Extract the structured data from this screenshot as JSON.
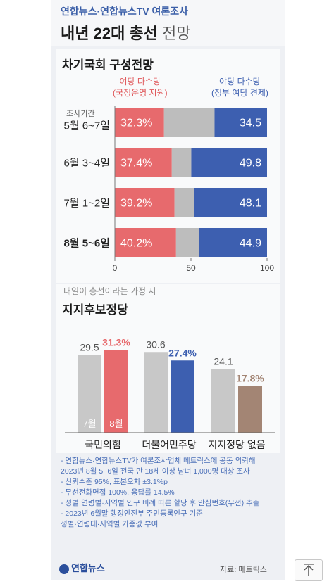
{
  "header": {
    "publisher": "연합뉴스·연합뉴스TV 여론조사",
    "title_main": "내년 22대 총선",
    "title_sub": "전망"
  },
  "section1": {
    "title": "차기국회 구성전망",
    "legend_left_line1": "여당 다수당",
    "legend_left_line2": "(국정운영 지원)",
    "legend_right_line1": "야당 다수당",
    "legend_right_line2": "(정부 여당 견제)",
    "period_header": "조사기간"
  },
  "section2": {
    "note": "내일이 총선이라는 가정 시",
    "title": "지지후보정당"
  },
  "notes": [
    "- 연합뉴스·연합뉴스TV가 여론조사업체 메트릭스에 공동 의뢰해",
    "  2023년 8월 5~6일 전국 만 18세 이상 남녀 1,000명 대상 조사",
    "- 신뢰수준 95%, 표본오차 ±3.1%p",
    "- 무선전화면접 100%, 응답률 14.5%",
    "- 성별·연령별·지역별 인구 비례 따른 할당 후 안심번호(무선) 추출",
    "- 2023년 6월말 행정안전부 주민등록인구 기준",
    "  성별·연령대·지역별 가중값 부여"
  ],
  "footer": {
    "logo": "연합뉴스",
    "source": "자료: 메트릭스"
  },
  "colors": {
    "red": "#e76a6d",
    "blue": "#3d5fb0",
    "gray": "#bdbdbd",
    "brown": "#a38574",
    "light_gray": "#c8c8c8"
  },
  "chart_data": [
    {
      "type": "bar",
      "orientation": "horizontal-stacked",
      "categories": [
        "5월 6~7일",
        "6월 3~4일",
        "7월 1~2일",
        "8월 5~6일"
      ],
      "series": [
        {
          "name": "여당 다수당 (국정운영 지원)",
          "values": [
            32.3,
            37.4,
            39.2,
            40.2
          ]
        },
        {
          "name": "야당 다수당 (정부 여당 견제)",
          "values": [
            34.5,
            49.8,
            48.1,
            44.9
          ]
        }
      ],
      "value_labels": {
        "left": [
          "32.3%",
          "37.4%",
          "39.2%",
          "40.2%"
        ],
        "right": [
          "34.5",
          "49.8",
          "48.1",
          "44.9"
        ]
      },
      "xlim": [
        0,
        100
      ],
      "xticks": [
        "0",
        "50",
        "100"
      ]
    },
    {
      "type": "bar",
      "orientation": "vertical-grouped",
      "categories": [
        "국민의힘",
        "더불어민주당",
        "지지정당 없음"
      ],
      "series": [
        {
          "name": "7월",
          "values": [
            29.5,
            30.6,
            24.1
          ]
        },
        {
          "name": "8월",
          "values": [
            31.3,
            27.4,
            17.8
          ]
        }
      ],
      "value_labels": {
        "july": [
          "29.5",
          "30.6",
          "24.1"
        ],
        "august": [
          "31.3%",
          "27.4%",
          "17.8%"
        ]
      },
      "inside_labels": [
        "7월",
        "8월"
      ],
      "ylim": [
        0,
        36
      ]
    }
  ]
}
